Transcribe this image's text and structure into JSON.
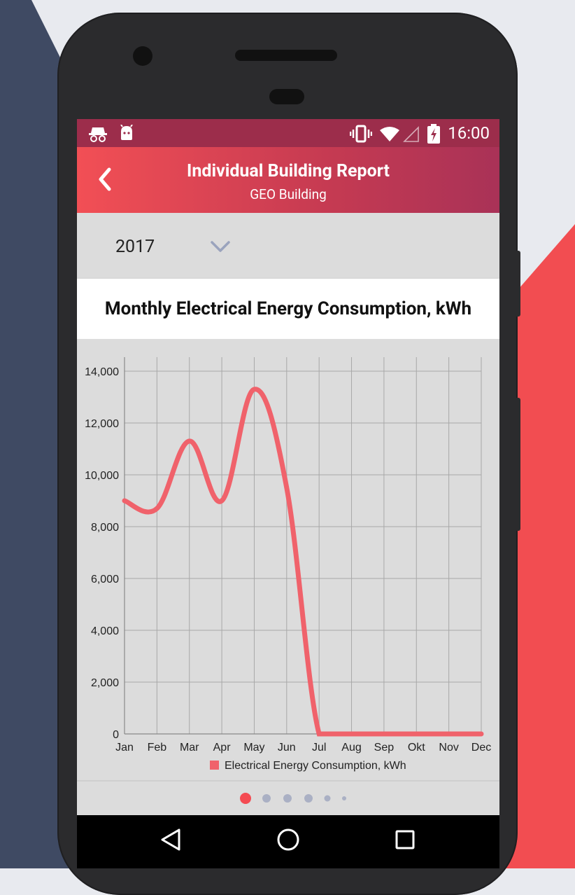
{
  "status_bar": {
    "time": "16:00",
    "icons": [
      "incognito-icon",
      "android-icon",
      "vibrate-icon",
      "wifi-icon",
      "signal-icon",
      "battery-charging-icon"
    ]
  },
  "app_bar": {
    "title": "Individual Building Report",
    "subtitle": "GEO Building"
  },
  "year_selector": {
    "selected": "2017"
  },
  "chart_card": {
    "title": "Monthly Electrical Energy Consumption, kWh"
  },
  "chart_data": {
    "type": "line",
    "x": [
      "Jan",
      "Feb",
      "Mar",
      "Apr",
      "May",
      "Jun",
      "Jul",
      "Aug",
      "Sep",
      "Okt",
      "Nov",
      "Dec"
    ],
    "series": [
      {
        "name": "Electrical Energy Consumption, kWh",
        "values": [
          9000,
          8700,
          11300,
          9000,
          13300,
          9500,
          0,
          0,
          0,
          0,
          0,
          0
        ],
        "color": "#f0626b"
      }
    ],
    "ylim": [
      0,
      14000
    ],
    "yticks": [
      "0",
      "2,000",
      "4,000",
      "6,000",
      "8,000",
      "10,000",
      "12,000",
      "14,000"
    ],
    "grid": true,
    "legend": "bottom"
  },
  "pager": {
    "active_color": "#f44b52",
    "inactive_color": "#aab0c4"
  },
  "nav_bar": {
    "icons": [
      "back-triangle-icon",
      "home-circle-icon",
      "recents-square-icon"
    ]
  }
}
